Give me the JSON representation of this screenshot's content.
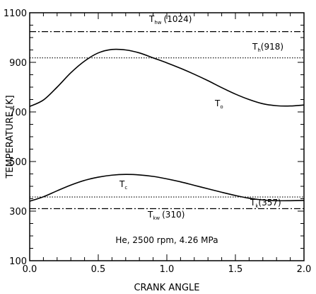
{
  "chart_data": {
    "type": "line",
    "xlabel": "CRANK ANGLE",
    "ylabel": "TEMPERATURE [K]",
    "xlim": [
      0,
      2
    ],
    "ylim": [
      100,
      1100
    ],
    "xticks": [
      0,
      0.5,
      1,
      1.5,
      2
    ],
    "xtick_labels": [
      "0.0",
      "0.5",
      "1.0",
      "1.5",
      "2.0"
    ],
    "yticks": [
      100,
      300,
      500,
      700,
      900,
      1100
    ],
    "ytick_labels": [
      "100",
      "300",
      "500",
      "700",
      "900",
      "1100"
    ],
    "grid": false,
    "series": [
      {
        "name": "To",
        "style": "solid",
        "points": [
          [
            0,
            722
          ],
          [
            0.1,
            748
          ],
          [
            0.2,
            800
          ],
          [
            0.3,
            858
          ],
          [
            0.4,
            905
          ],
          [
            0.5,
            938
          ],
          [
            0.6,
            952
          ],
          [
            0.7,
            950
          ],
          [
            0.8,
            938
          ],
          [
            0.9,
            918
          ],
          [
            1.0,
            898
          ],
          [
            1.1,
            876
          ],
          [
            1.2,
            852
          ],
          [
            1.3,
            826
          ],
          [
            1.4,
            798
          ],
          [
            1.5,
            772
          ],
          [
            1.6,
            750
          ],
          [
            1.7,
            733
          ],
          [
            1.8,
            725
          ],
          [
            1.9,
            724
          ],
          [
            2.0,
            728
          ]
        ]
      },
      {
        "name": "Tc",
        "style": "solid",
        "points": [
          [
            0,
            340
          ],
          [
            0.1,
            358
          ],
          [
            0.2,
            382
          ],
          [
            0.3,
            405
          ],
          [
            0.4,
            424
          ],
          [
            0.5,
            437
          ],
          [
            0.6,
            445
          ],
          [
            0.7,
            448
          ],
          [
            0.8,
            446
          ],
          [
            0.9,
            440
          ],
          [
            1.0,
            430
          ],
          [
            1.1,
            418
          ],
          [
            1.2,
            404
          ],
          [
            1.3,
            390
          ],
          [
            1.4,
            376
          ],
          [
            1.5,
            363
          ],
          [
            1.6,
            352
          ],
          [
            1.7,
            345
          ],
          [
            1.8,
            342
          ],
          [
            1.9,
            342
          ],
          [
            2.0,
            343
          ]
        ]
      },
      {
        "name": "Thw",
        "style": "dash-dot",
        "value": 1024
      },
      {
        "name": "Th",
        "style": "dotted",
        "value": 918
      },
      {
        "name": "Tk",
        "style": "dotted",
        "value": 357
      },
      {
        "name": "Tkw",
        "style": "dash-dot",
        "value": 310
      }
    ],
    "annotations": {
      "thw": {
        "main": "T",
        "sub": "hw",
        "value": "(1024)"
      },
      "th": {
        "main": "T",
        "sub": "h",
        "value": "(918)"
      },
      "to": {
        "main": "T",
        "sub": "o"
      },
      "tc": {
        "main": "T",
        "sub": "c"
      },
      "tk": {
        "main": "T",
        "sub": "k",
        "value": "(357)"
      },
      "tkw": {
        "main": "T",
        "sub": "kw",
        "value": "(310)"
      },
      "conditions": "He, 2500 rpm, 4.26 MPa"
    }
  }
}
